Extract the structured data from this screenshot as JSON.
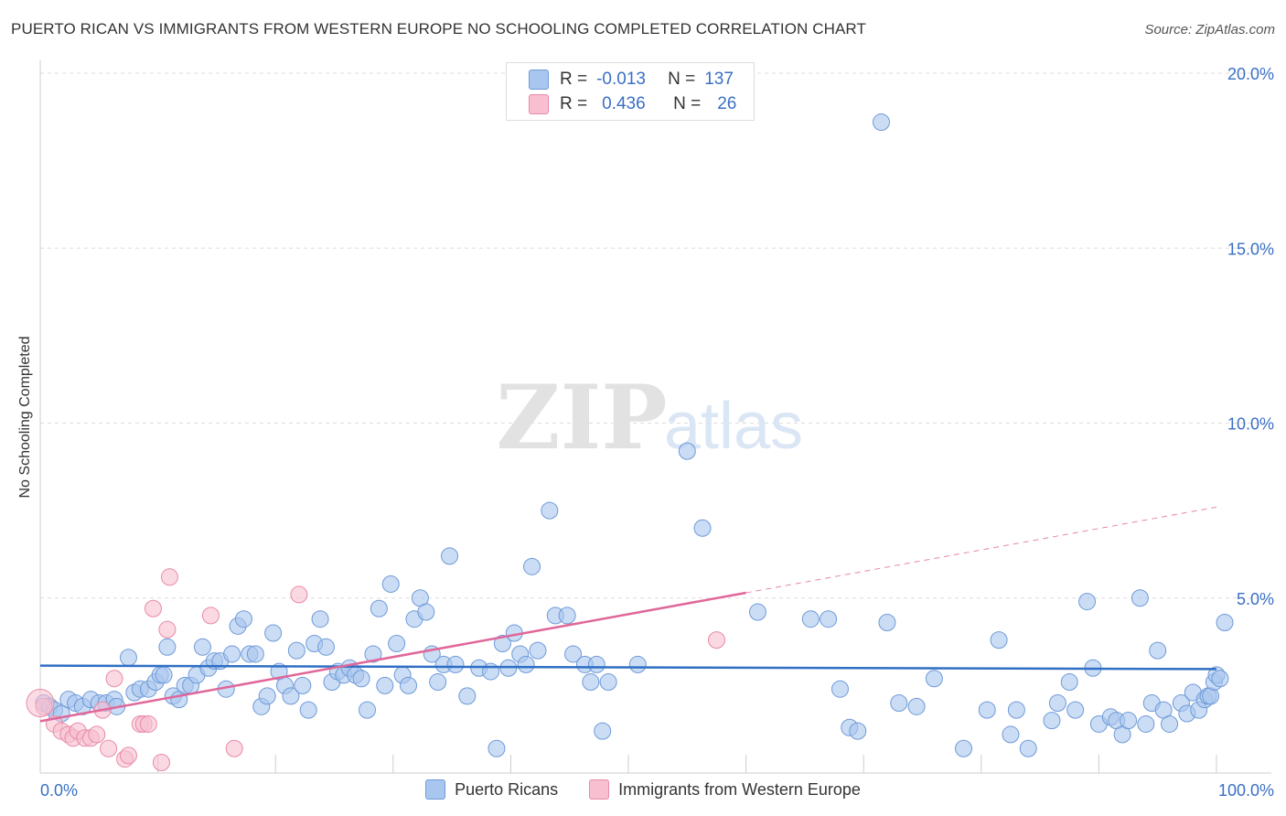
{
  "title": "PUERTO RICAN VS IMMIGRANTS FROM WESTERN EUROPE NO SCHOOLING COMPLETED CORRELATION CHART",
  "source": "Source: ZipAtlas.com",
  "watermark": {
    "zip": "ZIP",
    "atlas": "atlas"
  },
  "legend_stats": [
    {
      "r_label": "R =",
      "r_value": "-0.013",
      "n_label": "N =",
      "n_value": "137",
      "color": "#a9c6ee",
      "border": "#6f9ad8"
    },
    {
      "r_label": "R =",
      "r_value": "0.436",
      "n_label": "N =",
      "n_value": "26",
      "color": "#f7bfd0",
      "border": "#e98aa7"
    }
  ],
  "chart_data": {
    "type": "scatter",
    "xlabel": "",
    "ylabel": "No Schooling Completed",
    "xlim": [
      0,
      100
    ],
    "ylim": [
      0,
      20
    ],
    "x_tick_labels": [
      "0.0%",
      "100.0%"
    ],
    "y_ticks": [
      5,
      10,
      15,
      20
    ],
    "y_tick_labels": [
      "5.0%",
      "10.0%",
      "15.0%",
      "20.0%"
    ],
    "grid": true,
    "legend_position": "bottom",
    "series": [
      {
        "name": "Puerto Ricans",
        "color": "#a9c6ee",
        "stroke": "#6f9ad8",
        "trend": {
          "x0": 0,
          "y0": 3.07,
          "x1": 100,
          "y1": 2.97,
          "color": "#2f6fc4"
        },
        "points": [
          [
            0.3,
            2.0
          ],
          [
            0.8,
            1.9
          ],
          [
            1.2,
            1.8
          ],
          [
            1.8,
            1.7
          ],
          [
            2.4,
            2.1
          ],
          [
            3.0,
            2.0
          ],
          [
            3.6,
            1.9
          ],
          [
            4.3,
            2.1
          ],
          [
            5.0,
            2.0
          ],
          [
            5.6,
            2.0
          ],
          [
            6.3,
            2.1
          ],
          [
            6.5,
            1.9
          ],
          [
            7.5,
            3.3
          ],
          [
            8.0,
            2.3
          ],
          [
            8.5,
            2.4
          ],
          [
            9.2,
            2.4
          ],
          [
            9.8,
            2.6
          ],
          [
            10.2,
            2.8
          ],
          [
            10.5,
            2.8
          ],
          [
            10.8,
            3.6
          ],
          [
            11.3,
            2.2
          ],
          [
            11.8,
            2.1
          ],
          [
            12.3,
            2.5
          ],
          [
            12.8,
            2.5
          ],
          [
            13.3,
            2.8
          ],
          [
            13.8,
            3.6
          ],
          [
            14.3,
            3.0
          ],
          [
            14.8,
            3.2
          ],
          [
            15.3,
            3.2
          ],
          [
            15.8,
            2.4
          ],
          [
            16.3,
            3.4
          ],
          [
            16.8,
            4.2
          ],
          [
            17.3,
            4.4
          ],
          [
            17.8,
            3.4
          ],
          [
            18.3,
            3.4
          ],
          [
            18.8,
            1.9
          ],
          [
            19.3,
            2.2
          ],
          [
            19.8,
            4.0
          ],
          [
            20.3,
            2.9
          ],
          [
            20.8,
            2.5
          ],
          [
            21.3,
            2.2
          ],
          [
            21.8,
            3.5
          ],
          [
            22.3,
            2.5
          ],
          [
            22.8,
            1.8
          ],
          [
            23.3,
            3.7
          ],
          [
            23.8,
            4.4
          ],
          [
            24.3,
            3.6
          ],
          [
            24.8,
            2.6
          ],
          [
            25.3,
            2.9
          ],
          [
            25.8,
            2.8
          ],
          [
            26.3,
            3.0
          ],
          [
            26.8,
            2.8
          ],
          [
            27.3,
            2.7
          ],
          [
            27.8,
            1.8
          ],
          [
            28.3,
            3.4
          ],
          [
            28.8,
            4.7
          ],
          [
            29.3,
            2.5
          ],
          [
            29.8,
            5.4
          ],
          [
            30.3,
            3.7
          ],
          [
            30.8,
            2.8
          ],
          [
            31.3,
            2.5
          ],
          [
            31.8,
            4.4
          ],
          [
            32.3,
            5.0
          ],
          [
            32.8,
            4.6
          ],
          [
            33.3,
            3.4
          ],
          [
            33.8,
            2.6
          ],
          [
            34.3,
            3.1
          ],
          [
            34.8,
            6.2
          ],
          [
            35.3,
            3.1
          ],
          [
            36.3,
            2.2
          ],
          [
            37.3,
            3.0
          ],
          [
            38.3,
            2.9
          ],
          [
            38.8,
            0.7
          ],
          [
            39.3,
            3.7
          ],
          [
            39.8,
            3.0
          ],
          [
            40.3,
            4.0
          ],
          [
            40.8,
            3.4
          ],
          [
            41.3,
            3.1
          ],
          [
            41.8,
            5.9
          ],
          [
            42.3,
            3.5
          ],
          [
            43.3,
            7.5
          ],
          [
            43.8,
            4.5
          ],
          [
            44.8,
            4.5
          ],
          [
            45.3,
            3.4
          ],
          [
            46.3,
            3.1
          ],
          [
            46.8,
            2.6
          ],
          [
            47.3,
            3.1
          ],
          [
            47.8,
            1.2
          ],
          [
            48.3,
            2.6
          ],
          [
            50.8,
            3.1
          ],
          [
            55.0,
            9.2
          ],
          [
            56.3,
            7.0
          ],
          [
            61.0,
            4.6
          ],
          [
            65.5,
            4.4
          ],
          [
            67.0,
            4.4
          ],
          [
            68.0,
            2.4
          ],
          [
            68.8,
            1.3
          ],
          [
            69.5,
            1.2
          ],
          [
            71.5,
            18.6
          ],
          [
            72.0,
            4.3
          ],
          [
            73.0,
            2.0
          ],
          [
            74.5,
            1.9
          ],
          [
            76.0,
            2.7
          ],
          [
            78.5,
            0.7
          ],
          [
            80.5,
            1.8
          ],
          [
            81.5,
            3.8
          ],
          [
            82.5,
            1.1
          ],
          [
            83.0,
            1.8
          ],
          [
            84.0,
            0.7
          ],
          [
            86.0,
            1.5
          ],
          [
            86.5,
            2.0
          ],
          [
            87.5,
            2.6
          ],
          [
            88.0,
            1.8
          ],
          [
            89.0,
            4.9
          ],
          [
            89.5,
            3.0
          ],
          [
            90.0,
            1.4
          ],
          [
            91.0,
            1.6
          ],
          [
            91.5,
            1.5
          ],
          [
            92.0,
            1.1
          ],
          [
            92.5,
            1.5
          ],
          [
            93.5,
            5.0
          ],
          [
            94.0,
            1.4
          ],
          [
            94.5,
            2.0
          ],
          [
            95.0,
            3.5
          ],
          [
            95.5,
            1.8
          ],
          [
            96.0,
            1.4
          ],
          [
            97.0,
            2.0
          ],
          [
            97.5,
            1.7
          ],
          [
            98.0,
            2.3
          ],
          [
            98.5,
            1.8
          ],
          [
            99.0,
            2.1
          ],
          [
            99.3,
            2.2
          ],
          [
            99.5,
            2.2
          ],
          [
            99.8,
            2.6
          ],
          [
            100.0,
            2.8
          ],
          [
            100.3,
            2.7
          ],
          [
            100.7,
            4.3
          ]
        ]
      },
      {
        "name": "Immigrants from Western Europe",
        "color": "#f7bfd0",
        "stroke": "#e98aa7",
        "trend": {
          "x0": 0,
          "y0": 1.48,
          "x1": 60,
          "y1": 5.15,
          "dash_x1": 100,
          "dash_y1": 7.6,
          "color": "#e0679a"
        },
        "points": [
          [
            0.3,
            1.9
          ],
          [
            1.2,
            1.4
          ],
          [
            1.8,
            1.2
          ],
          [
            2.4,
            1.1
          ],
          [
            2.8,
            1.0
          ],
          [
            3.2,
            1.2
          ],
          [
            3.8,
            1.0
          ],
          [
            4.3,
            1.0
          ],
          [
            4.8,
            1.1
          ],
          [
            5.3,
            1.8
          ],
          [
            5.8,
            0.7
          ],
          [
            6.3,
            2.7
          ],
          [
            7.2,
            0.4
          ],
          [
            7.5,
            0.5
          ],
          [
            8.5,
            1.4
          ],
          [
            8.8,
            1.4
          ],
          [
            9.2,
            1.4
          ],
          [
            9.6,
            4.7
          ],
          [
            10.3,
            0.3
          ],
          [
            10.8,
            4.1
          ],
          [
            11.0,
            5.6
          ],
          [
            14.5,
            4.5
          ],
          [
            16.5,
            0.7
          ],
          [
            22.0,
            5.1
          ],
          [
            57.5,
            3.8
          ],
          [
            0.0,
            2.0
          ]
        ]
      }
    ]
  },
  "legend_bottom": [
    {
      "label": "Puerto Ricans",
      "color": "#a9c6ee",
      "border": "#6f9ad8"
    },
    {
      "label": "Immigrants from Western Europe",
      "color": "#f7bfd0",
      "border": "#e98aa7"
    }
  ]
}
